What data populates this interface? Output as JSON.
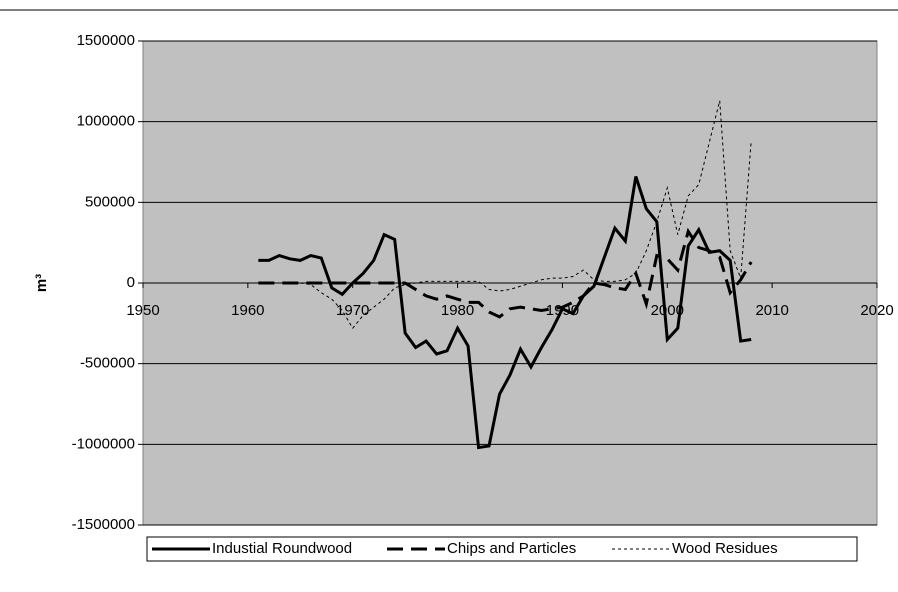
{
  "chart_data": {
    "type": "line",
    "y_label": "m³",
    "x": [
      1961,
      1962,
      1963,
      1964,
      1965,
      1966,
      1967,
      1968,
      1969,
      1970,
      1971,
      1972,
      1973,
      1974,
      1975,
      1976,
      1977,
      1978,
      1979,
      1980,
      1981,
      1982,
      1983,
      1984,
      1985,
      1986,
      1987,
      1988,
      1989,
      1990,
      1991,
      1992,
      1993,
      1994,
      1995,
      1996,
      1997,
      1998,
      1999,
      2000,
      2001,
      2002,
      2003,
      2004,
      2005,
      2006,
      2007,
      2008
    ],
    "series": [
      {
        "name": "Industial Roundwood",
        "color": "#000000",
        "style": "solid",
        "values": [
          140000,
          140000,
          170000,
          150000,
          140000,
          170000,
          155000,
          -30000,
          -70000,
          0,
          60000,
          140000,
          300000,
          270000,
          -310000,
          -400000,
          -360000,
          -440000,
          -420000,
          -280000,
          -390000,
          -1020000,
          -1010000,
          -690000,
          -570000,
          -410000,
          -520000,
          -400000,
          -290000,
          -160000,
          -190000,
          -80000,
          -20000,
          160000,
          340000,
          260000,
          660000,
          460000,
          380000,
          -350000,
          -280000,
          230000,
          330000,
          190000,
          200000,
          140000,
          -360000,
          -350000
        ]
      },
      {
        "name": "Chips and Particles",
        "color": "#000000",
        "style": "dashed",
        "values": [
          0,
          0,
          0,
          0,
          0,
          0,
          0,
          0,
          0,
          0,
          0,
          0,
          0,
          0,
          0,
          -40000,
          -80000,
          -100000,
          -80000,
          -100000,
          -120000,
          -120000,
          -180000,
          -210000,
          -160000,
          -150000,
          -160000,
          -170000,
          -160000,
          -150000,
          -120000,
          -80000,
          0,
          -10000,
          -30000,
          -40000,
          60000,
          -130000,
          170000,
          150000,
          80000,
          320000,
          220000,
          200000,
          160000,
          -60000,
          20000,
          130000
        ]
      },
      {
        "name": "Wood Residues",
        "color": "#000000",
        "style": "dotted",
        "values": [
          0,
          0,
          0,
          0,
          0,
          -10000,
          -60000,
          -100000,
          -170000,
          -280000,
          -200000,
          -150000,
          -100000,
          -30000,
          -10000,
          0,
          10000,
          10000,
          10000,
          10000,
          10000,
          10000,
          -40000,
          -50000,
          -40000,
          -20000,
          0,
          20000,
          30000,
          30000,
          40000,
          80000,
          20000,
          10000,
          10000,
          20000,
          60000,
          200000,
          380000,
          590000,
          300000,
          540000,
          610000,
          870000,
          1130000,
          200000,
          30000,
          880000
        ]
      }
    ],
    "xlim": [
      1950,
      2020
    ],
    "xticks": [
      1950,
      1960,
      1970,
      1980,
      1990,
      2000,
      2010,
      2020
    ],
    "ylim": [
      -1500000,
      1500000
    ],
    "yticks": [
      -1500000,
      -1000000,
      -500000,
      0,
      500000,
      1000000,
      1500000
    ],
    "grid": true,
    "legend": "bottom"
  }
}
